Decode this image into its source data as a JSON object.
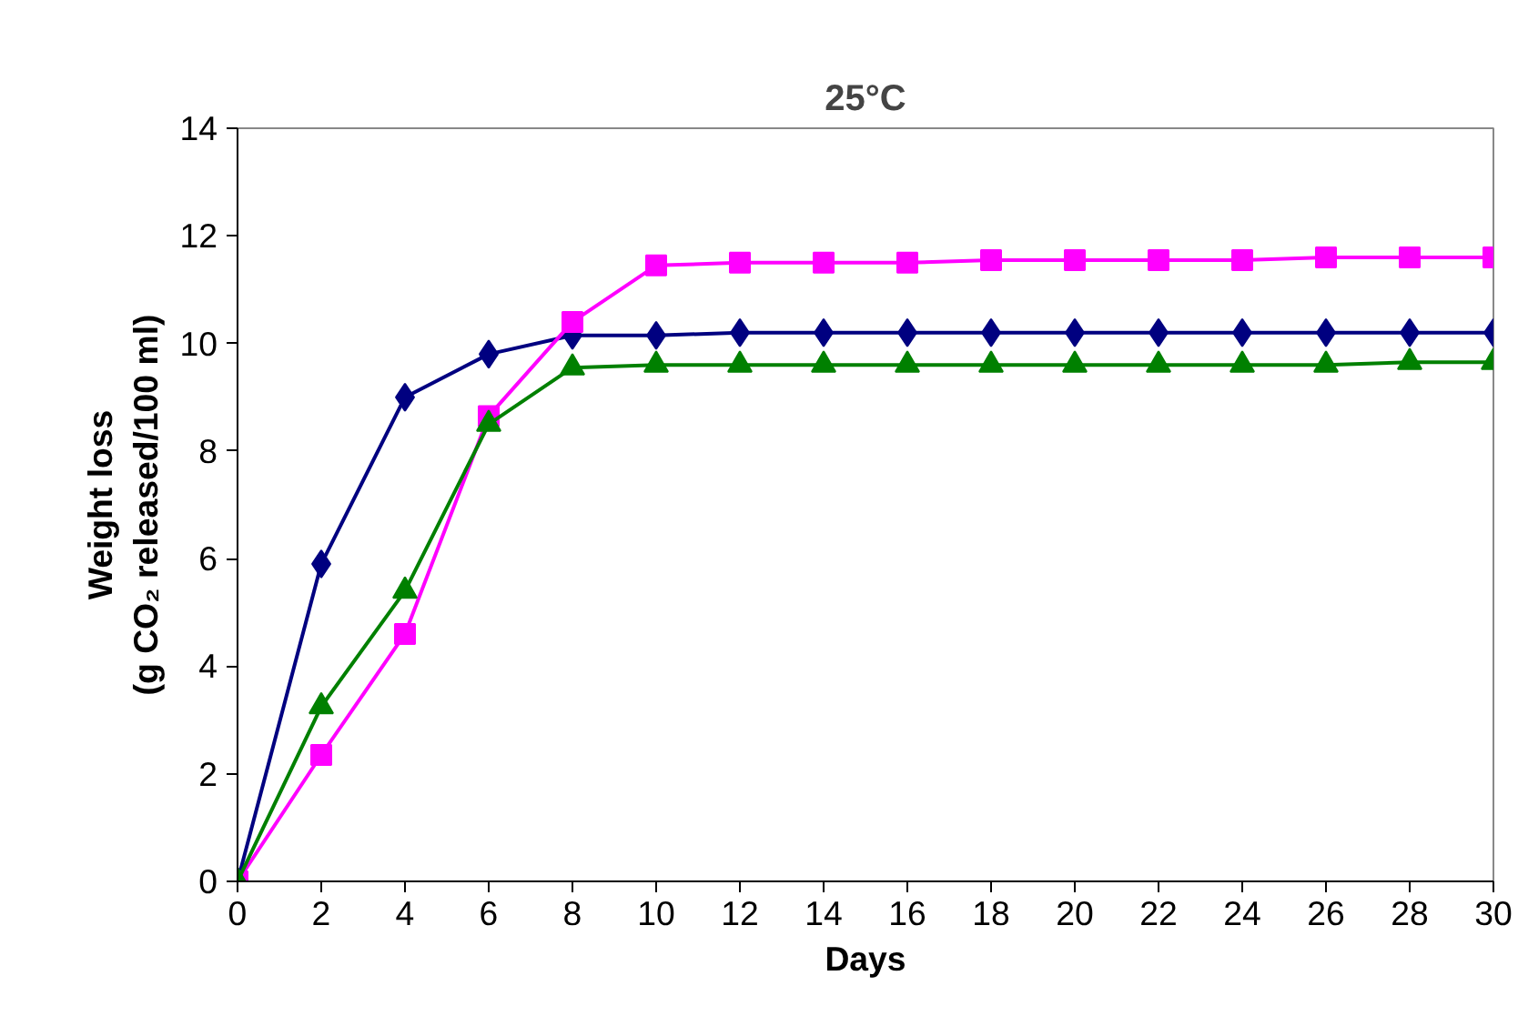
{
  "chart_data": {
    "type": "line",
    "title": "25°C",
    "xlabel": "Days",
    "ylabel": "Weight loss (g CO₂ released/100 ml)",
    "x": [
      0,
      2,
      4,
      6,
      8,
      10,
      12,
      14,
      16,
      18,
      20,
      22,
      24,
      26,
      28,
      30
    ],
    "xlim": [
      0,
      30
    ],
    "xticks": [
      0,
      2,
      4,
      6,
      8,
      10,
      12,
      14,
      16,
      18,
      20,
      22,
      24,
      26,
      28,
      30
    ],
    "ylim": [
      0,
      14
    ],
    "yticks": [
      0,
      2,
      4,
      6,
      8,
      10,
      12,
      14
    ],
    "grid": false,
    "series": [
      {
        "color": "#000080",
        "marker": "diamond",
        "values": [
          0,
          5.9,
          9.0,
          9.8,
          10.15,
          10.15,
          10.2,
          10.2,
          10.2,
          10.2,
          10.2,
          10.2,
          10.2,
          10.2,
          10.2,
          10.2
        ]
      },
      {
        "color": "#ff00ff",
        "marker": "square",
        "values": [
          0,
          2.35,
          4.6,
          8.65,
          10.4,
          11.45,
          11.5,
          11.5,
          11.5,
          11.55,
          11.55,
          11.55,
          11.55,
          11.6,
          11.6,
          11.6
        ]
      },
      {
        "color": "#008000",
        "marker": "triangle",
        "values": [
          0,
          3.25,
          5.4,
          8.5,
          9.55,
          9.6,
          9.6,
          9.6,
          9.6,
          9.6,
          9.6,
          9.6,
          9.6,
          9.6,
          9.65,
          9.65
        ]
      }
    ]
  }
}
